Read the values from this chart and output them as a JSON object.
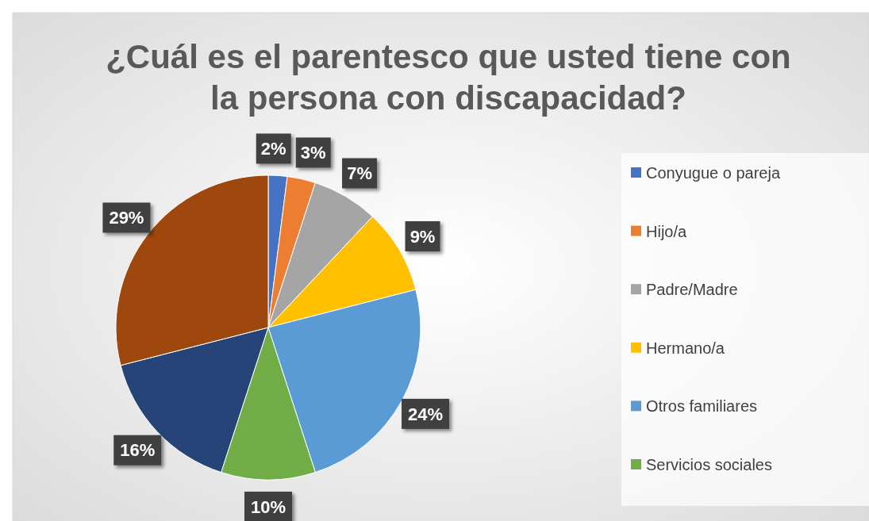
{
  "chart_data": {
    "type": "pie",
    "title": "¿Cuál es el parentesco que usted tiene con la persona con discapacidad?",
    "categories": [
      "Conyugue o pareja",
      "Hijo/a",
      "Padre/Madre",
      "Hermano/a",
      "Otros familiares",
      "Servicios sociales",
      null,
      null
    ],
    "values": [
      2,
      3,
      7,
      9,
      24,
      10,
      16,
      29
    ],
    "colors": [
      "#4472c4",
      "#ed7d31",
      "#a5a5a5",
      "#ffc000",
      "#5b9bd5",
      "#70ad47",
      "#264478",
      "#9e480e"
    ],
    "value_labels": [
      "2%",
      "3%",
      "7%",
      "9%",
      "24%",
      "10%",
      "16%",
      "29%"
    ],
    "legend": "right"
  }
}
